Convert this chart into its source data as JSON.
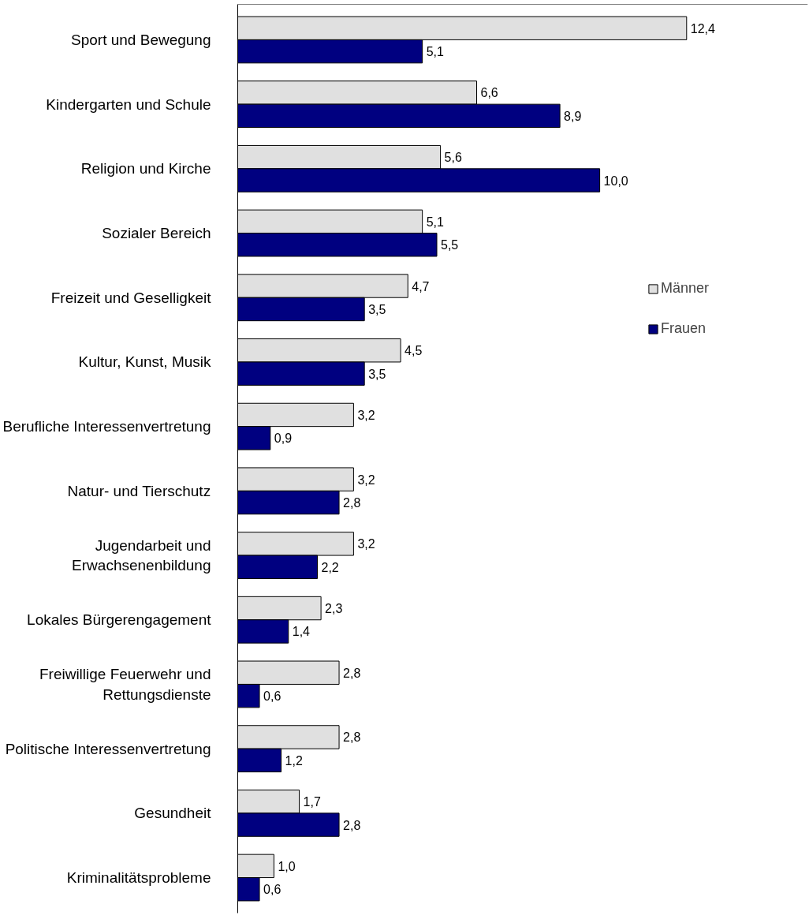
{
  "chart_data": {
    "type": "bar",
    "orientation": "horizontal",
    "categories": [
      "Sport und Bewegung",
      "Kindergarten und Schule",
      "Religion und Kirche",
      "Sozialer Bereich",
      "Freizeit und Geselligkeit",
      "Kultur, Kunst, Musik",
      "Berufliche Interessenvertretung",
      "Natur- und Tierschutz",
      "Jugendarbeit und\nErwachsenenbildung",
      "Lokales Bürgerengagement",
      "Freiwillige Feuerwehr und\nRettungsdienste",
      "Politische Interessenvertretung",
      "Gesundheit",
      "Kriminalitätsprobleme"
    ],
    "series": [
      {
        "name": "Männer",
        "color": "#e0e0e0",
        "values": [
          12.4,
          6.6,
          5.6,
          5.1,
          4.7,
          4.5,
          3.2,
          3.2,
          3.2,
          2.3,
          2.8,
          2.8,
          1.7,
          1.0
        ],
        "value_labels": [
          "12,4",
          "6,6",
          "5,6",
          "5,1",
          "4,7",
          "4,5",
          "3,2",
          "3,2",
          "3,2",
          "2,3",
          "2,8",
          "2,8",
          "1,7",
          "1,0"
        ]
      },
      {
        "name": "Frauen",
        "color": "#000080",
        "values": [
          5.1,
          8.9,
          10.0,
          5.5,
          3.5,
          3.5,
          0.9,
          2.8,
          2.2,
          1.4,
          0.6,
          1.2,
          2.8,
          0.6
        ],
        "value_labels": [
          "5,1",
          "8,9",
          "10,0",
          "5,5",
          "3,5",
          "3,5",
          "0,9",
          "2,8",
          "2,2",
          "1,4",
          "0,6",
          "1,2",
          "2,8",
          "0,6"
        ]
      }
    ],
    "legend": "right",
    "grid": false
  }
}
